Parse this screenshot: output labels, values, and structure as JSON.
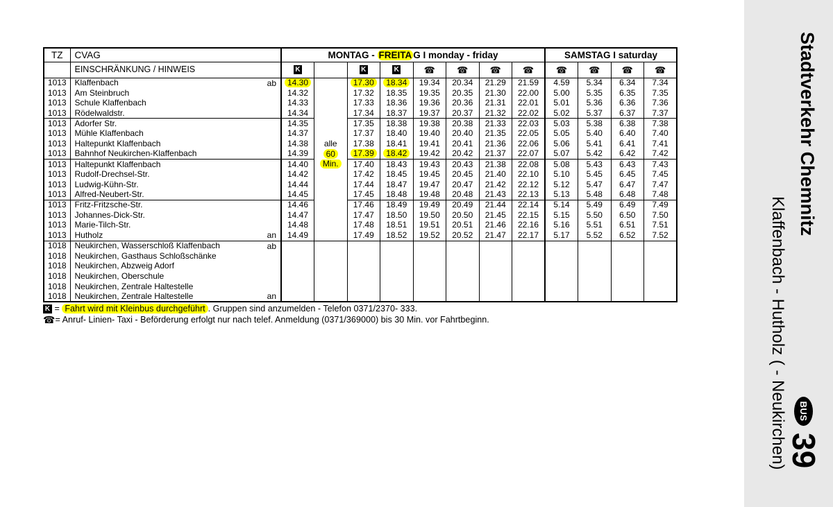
{
  "colors": {
    "highlight": "#ffff00",
    "sidebar_bg": "#e8e8e8",
    "badge_bg": "#000000",
    "badge_text": "#ffffff"
  },
  "sidebar": {
    "operator": "Stadtverkehr Chemnitz",
    "route": "Klaffenbach - Hutholz ( - Neukirchen)",
    "bus_badge": "BUS",
    "line_number": "39"
  },
  "header": {
    "tz": "TZ",
    "cvag": "CVAG",
    "restriction": "EINSCHRÄNKUNG / HINWEIS",
    "monfri_prefix": "MONTAG - ",
    "monfri_highlight": "FREITA",
    "monfri_suffix": "G I monday - friday",
    "saturday": "SAMSTAG I saturday",
    "k_symbol": "K",
    "phone_symbol": "☎",
    "col_symbols": [
      "K",
      "",
      "K",
      "K",
      "phone",
      "phone",
      "phone",
      "phone",
      "phone",
      "phone",
      "phone",
      "phone"
    ]
  },
  "rows": [
    {
      "tz": "1013",
      "name": "Klaffenbach",
      "dep": "ab",
      "times": [
        "14.30",
        "",
        "17.30",
        "18.34",
        "19.34",
        "20.34",
        "21.29",
        "21.59",
        "4.59",
        "5.34",
        "6.34",
        "7.34"
      ],
      "hl": [
        0,
        2,
        3
      ]
    },
    {
      "tz": "1013",
      "name": "Am Steinbruch",
      "times": [
        "14.32",
        "",
        "17.32",
        "18.35",
        "19.35",
        "20.35",
        "21.30",
        "22.00",
        "5.00",
        "5.35",
        "6.35",
        "7.35"
      ]
    },
    {
      "tz": "1013",
      "name": "Schule Klaffenbach",
      "times": [
        "14.33",
        "",
        "17.33",
        "18.36",
        "19.36",
        "20.36",
        "21.31",
        "22.01",
        "5.01",
        "5.36",
        "6.36",
        "7.36"
      ]
    },
    {
      "tz": "1013",
      "name": "Rödelwaldstr.",
      "times": [
        "14.34",
        "",
        "17.34",
        "18.37",
        "19.37",
        "20.37",
        "21.32",
        "22.02",
        "5.02",
        "5.37",
        "6.37",
        "7.37"
      ],
      "sep": "mid"
    },
    {
      "tz": "1013",
      "name": "Adorfer Str.",
      "times": [
        "14.35",
        "",
        "17.35",
        "18.38",
        "19.38",
        "20.38",
        "21.33",
        "22.03",
        "5.03",
        "5.38",
        "6.38",
        "7.38"
      ]
    },
    {
      "tz": "1013",
      "name": "Mühle Klaffenbach",
      "times": [
        "14.37",
        "",
        "17.37",
        "18.40",
        "19.40",
        "20.40",
        "21.35",
        "22.05",
        "5.05",
        "5.40",
        "6.40",
        "7.40"
      ]
    },
    {
      "tz": "1013",
      "name": "Haltepunkt Klaffenbach",
      "times": [
        "14.38",
        "alle",
        "17.38",
        "18.41",
        "19.41",
        "20.41",
        "21.36",
        "22.06",
        "5.06",
        "5.41",
        "6.41",
        "7.41"
      ]
    },
    {
      "tz": "1013",
      "name": "Bahnhof Neukirchen-Klaffenbach",
      "times": [
        "14.39",
        "60",
        "17.39",
        "18.42",
        "19.42",
        "20.42",
        "21.37",
        "22.07",
        "5.07",
        "5.42",
        "6.42",
        "7.42"
      ],
      "hl": [
        1,
        2,
        3
      ],
      "sep": "mid"
    },
    {
      "tz": "1013",
      "name": "Haltepunkt Klaffenbach",
      "times": [
        "14.40",
        "Min.",
        "17.40",
        "18.43",
        "19.43",
        "20.43",
        "21.38",
        "22.08",
        "5.08",
        "5.43",
        "6.43",
        "7.43"
      ],
      "hl": [
        1
      ]
    },
    {
      "tz": "1013",
      "name": "Rudolf-Drechsel-Str.",
      "times": [
        "14.42",
        "",
        "17.42",
        "18.45",
        "19.45",
        "20.45",
        "21.40",
        "22.10",
        "5.10",
        "5.45",
        "6.45",
        "7.45"
      ]
    },
    {
      "tz": "1013",
      "name": "Ludwig-Kühn-Str.",
      "times": [
        "14.44",
        "",
        "17.44",
        "18.47",
        "19.47",
        "20.47",
        "21.42",
        "22.12",
        "5.12",
        "5.47",
        "6.47",
        "7.47"
      ]
    },
    {
      "tz": "1013",
      "name": "Alfred-Neubert-Str.",
      "times": [
        "14.45",
        "",
        "17.45",
        "18.48",
        "19.48",
        "20.48",
        "21.43",
        "22.13",
        "5.13",
        "5.48",
        "6.48",
        "7.48"
      ],
      "sep": "mid"
    },
    {
      "tz": "1013",
      "name": "Fritz-Fritzsche-Str.",
      "times": [
        "14.46",
        "",
        "17.46",
        "18.49",
        "19.49",
        "20.49",
        "21.44",
        "22.14",
        "5.14",
        "5.49",
        "6.49",
        "7.49"
      ]
    },
    {
      "tz": "1013",
      "name": "Johannes-Dick-Str.",
      "times": [
        "14.47",
        "",
        "17.47",
        "18.50",
        "19.50",
        "20.50",
        "21.45",
        "22.15",
        "5.15",
        "5.50",
        "6.50",
        "7.50"
      ]
    },
    {
      "tz": "1013",
      "name": "Marie-Tilch-Str.",
      "times": [
        "14.48",
        "",
        "17.48",
        "18.51",
        "19.51",
        "20.51",
        "21.46",
        "22.16",
        "5.16",
        "5.51",
        "6.51",
        "7.51"
      ]
    },
    {
      "tz": "1013",
      "name": "Hutholz",
      "dep": "an",
      "times": [
        "14.49",
        "",
        "17.49",
        "18.52",
        "19.52",
        "20.52",
        "21.47",
        "22.17",
        "5.17",
        "5.52",
        "6.52",
        "7.52"
      ],
      "sep": "all"
    },
    {
      "tz": "1018",
      "name": "Neukirchen, Wasserschloß Klaffenbach",
      "dep": "ab",
      "times": [
        "",
        "",
        "",
        "",
        "",
        "",
        "",
        "",
        "",
        "",
        "",
        ""
      ]
    },
    {
      "tz": "1018",
      "name": "Neukirchen, Gasthaus Schloßschänke",
      "times": [
        "",
        "",
        "",
        "",
        "",
        "",
        "",
        "",
        "",
        "",
        "",
        ""
      ]
    },
    {
      "tz": "1018",
      "name": "Neukirchen, Abzweig Adorf",
      "times": [
        "",
        "",
        "",
        "",
        "",
        "",
        "",
        "",
        "",
        "",
        "",
        ""
      ]
    },
    {
      "tz": "1018",
      "name": "Neukirchen, Oberschule",
      "times": [
        "",
        "",
        "",
        "",
        "",
        "",
        "",
        "",
        "",
        "",
        "",
        ""
      ]
    },
    {
      "tz": "1018",
      "name": "Neukirchen, Zentrale Haltestelle",
      "times": [
        "",
        "",
        "",
        "",
        "",
        "",
        "",
        "",
        "",
        "",
        "",
        ""
      ]
    },
    {
      "tz": "1018",
      "name": "Neukirchen, Zentrale Haltestelle",
      "dep": "an",
      "times": [
        "",
        "",
        "",
        "",
        "",
        "",
        "",
        "",
        "",
        "",
        "",
        ""
      ]
    }
  ],
  "footnotes": {
    "k_symbol": "K",
    "k_eq": " = ",
    "k_highlight": "Fahrt wird mit Kleinbus durchgeführt",
    "k_rest": ". Gruppen sind anzumelden -  Telefon 0371/2370- 333.",
    "phone_symbol": "☎",
    "phone_eq": "= ",
    "phone_text": "Anruf- Linien- Taxi -  Beförderung erfolgt nur nach telef. Anmeldung (0371/369000) bis 30 Min. vor Fahrtbeginn."
  }
}
